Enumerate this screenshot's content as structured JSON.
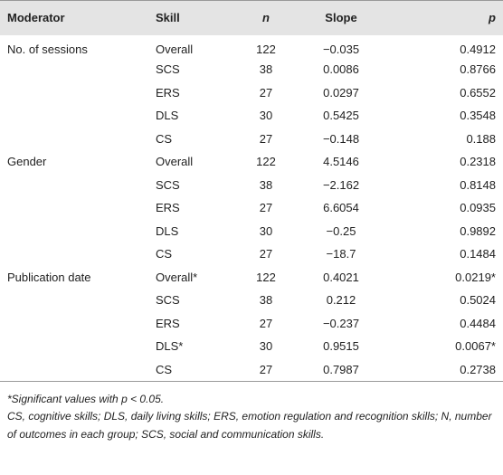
{
  "table": {
    "header": [
      "Moderator",
      "Skill",
      "n",
      "Slope",
      "p"
    ],
    "groups": [
      {
        "moderator": "No. of sessions",
        "rows": [
          [
            "Overall",
            "122",
            "−0.035",
            "0.4912"
          ],
          [
            "SCS",
            "38",
            "0.0086",
            "0.8766"
          ],
          [
            "ERS",
            "27",
            "0.0297",
            "0.6552"
          ],
          [
            "DLS",
            "30",
            "0.5425",
            "0.3548"
          ],
          [
            "CS",
            "27",
            "−0.148",
            "0.188"
          ]
        ]
      },
      {
        "moderator": "Gender",
        "rows": [
          [
            "Overall",
            "122",
            "4.5146",
            "0.2318"
          ],
          [
            "SCS",
            "38",
            "−2.162",
            "0.8148"
          ],
          [
            "ERS",
            "27",
            "6.6054",
            "0.0935"
          ],
          [
            "DLS",
            "30",
            "−0.25",
            "0.9892"
          ],
          [
            "CS",
            "27",
            "−18.7",
            "0.1484"
          ]
        ]
      },
      {
        "moderator": "Publication date",
        "rows": [
          [
            "Overall*",
            "122",
            "0.4021",
            "0.0219*"
          ],
          [
            "SCS",
            "38",
            "0.212",
            "0.5024"
          ],
          [
            "ERS",
            "27",
            "−0.237",
            "0.4484"
          ],
          [
            "DLS*",
            "30",
            "0.9515",
            "0.0067*"
          ],
          [
            "CS",
            "27",
            "0.7987",
            "0.2738"
          ]
        ]
      }
    ],
    "footnotes": [
      "*Significant values with p < 0.05.",
      "CS, cognitive skills; DLS, daily living skills; ERS, emotion regulation and recognition skills; N, number of outcomes in each group; SCS, social and communication skills."
    ]
  }
}
